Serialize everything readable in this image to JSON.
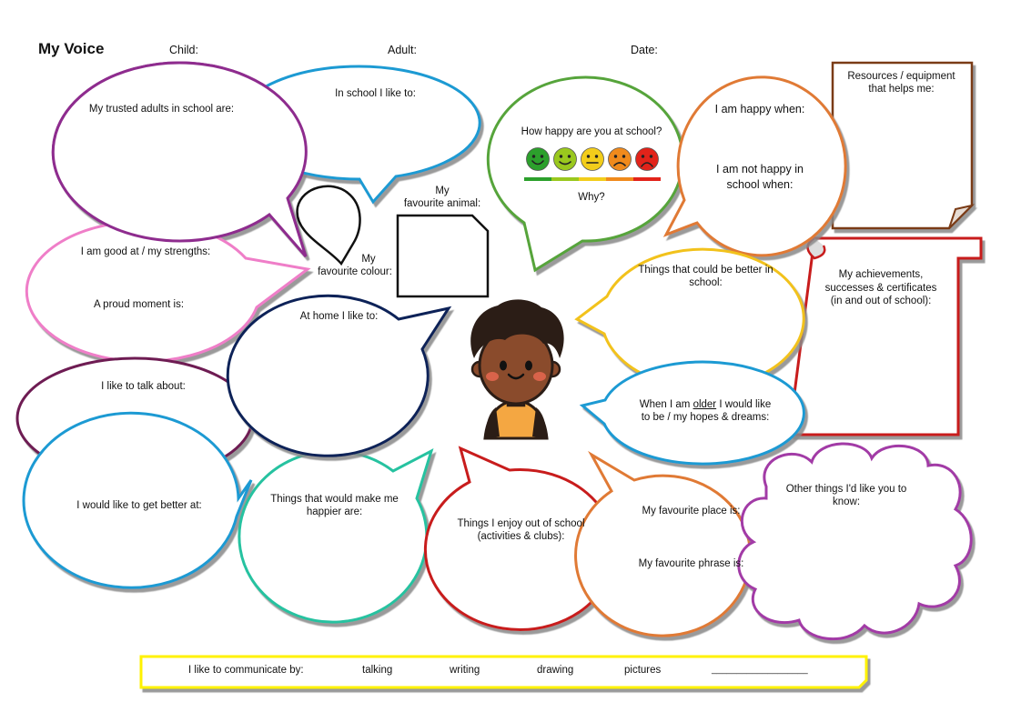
{
  "header": {
    "title": "My Voice",
    "child_label": "Child:",
    "adult_label": "Adult:",
    "date_label": "Date:"
  },
  "bubbles": {
    "trusted_adults": "My trusted adults in school are:",
    "in_school": "In school I like to:",
    "how_happy": "How happy are you at school?",
    "why": "Why?",
    "happy_when": "I am happy when:",
    "not_happy_1": "I am not happy in",
    "not_happy_2": "school when:",
    "resources_1": "Resources / equipment",
    "resources_2": "that helps me:",
    "good_at": "I am good at / my strengths:",
    "proud_moment": "A proud moment is:",
    "fav_colour_1": "My",
    "fav_colour_2": "favourite colour:",
    "fav_animal_1": "My",
    "fav_animal_2": "favourite animal:",
    "at_home": "At home I like to:",
    "better_school_1": "Things that could be better in",
    "better_school_2": "school:",
    "achievements_1": "My achievements,",
    "achievements_2": "successes & certificates",
    "achievements_3": "(in and out of school):",
    "talk_about": "I like to talk about:",
    "older_1a": "When I am ",
    "older_1b": "older",
    "older_1c": " I would like",
    "older_2": "to be / my hopes & dreams:",
    "get_better": "I would like to get better at:",
    "happier_1": "Things that would make me",
    "happier_2": "happier are:",
    "enjoy_1": "Things I enjoy out of school",
    "enjoy_2": "(activities & clubs):",
    "fav_place": "My favourite place is:",
    "fav_phrase": "My favourite phrase is:",
    "other_1": "Other things I'd like you to",
    "other_2": "know:"
  },
  "communicate": {
    "label": "I like to communicate by:",
    "options": [
      "talking",
      "writing",
      "drawing",
      "pictures",
      "___________________"
    ]
  },
  "colors": {
    "purple": "#8e2c8e",
    "blue": "#1e9ad3",
    "green": "#56a43a",
    "orange": "#e07a35",
    "brown": "#7a3a12",
    "pink": "#ef7ec8",
    "navy": "#0f2458",
    "yellow": "#f2c21a",
    "red": "#c81d1d",
    "teal": "#25c2a0",
    "plum": "#6e1b52",
    "banner_yellow": "#fff200"
  },
  "faces": [
    {
      "name": "very-happy",
      "color": "#2ca02c"
    },
    {
      "name": "happy",
      "color": "#9ac81e"
    },
    {
      "name": "neutral",
      "color": "#f2cd1b"
    },
    {
      "name": "sad",
      "color": "#f08a1c"
    },
    {
      "name": "very-sad",
      "color": "#e2231a"
    }
  ]
}
